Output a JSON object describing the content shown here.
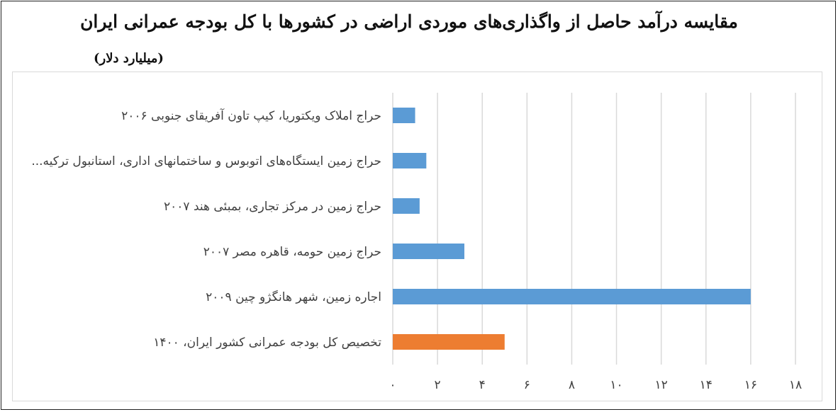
{
  "title": "مقایسه درآمد حاصل از واگذاری‌های موردی اراضی در کشورها با کل بودجه عمرانی ایران",
  "subtitle": "(میلیارد دلار)",
  "colors": {
    "series": "#5b9bd5",
    "highlight": "#ed7d31",
    "grid": "#d9d9d9",
    "text": "#404040"
  },
  "chart_data": {
    "type": "bar",
    "orientation": "horizontal",
    "title": "مقایسه درآمد حاصل از واگذاری‌های موردی اراضی در کشورها با کل بودجه عمرانی ایران",
    "ylabel": "(میلیارد دلار)",
    "categories": [
      "حراج املاک ویکتوریا، کیپ تاون آفریقای جنوبی ۲۰۰۶",
      "حراج زمین ایستگاه‌های اتوبوس و ساختمانهای اداری، استانبول ترکیه...",
      "حراج زمین در مرکز تجاری، بمبئی هند ۲۰۰۷",
      "حراج زمین حومه، قاهره مصر ۲۰۰۷",
      "اجاره زمین، شهر هانگژو چین ۲۰۰۹",
      "تخصیص کل بودجه عمرانی کشور ایران، ۱۴۰۰"
    ],
    "values": [
      1.0,
      1.5,
      1.2,
      3.2,
      16.0,
      5.0
    ],
    "bar_colors": [
      "#5b9bd5",
      "#5b9bd5",
      "#5b9bd5",
      "#5b9bd5",
      "#5b9bd5",
      "#ed7d31"
    ],
    "xlim": [
      0,
      18
    ],
    "xticks": [
      0,
      2,
      4,
      6,
      8,
      10,
      12,
      14,
      16,
      18
    ],
    "xtick_labels": [
      "۰",
      "۲",
      "۴",
      "۶",
      "۸",
      "۱۰",
      "۱۲",
      "۱۴",
      "۱۶",
      "۱۸"
    ],
    "grid": true,
    "legend": "none"
  }
}
